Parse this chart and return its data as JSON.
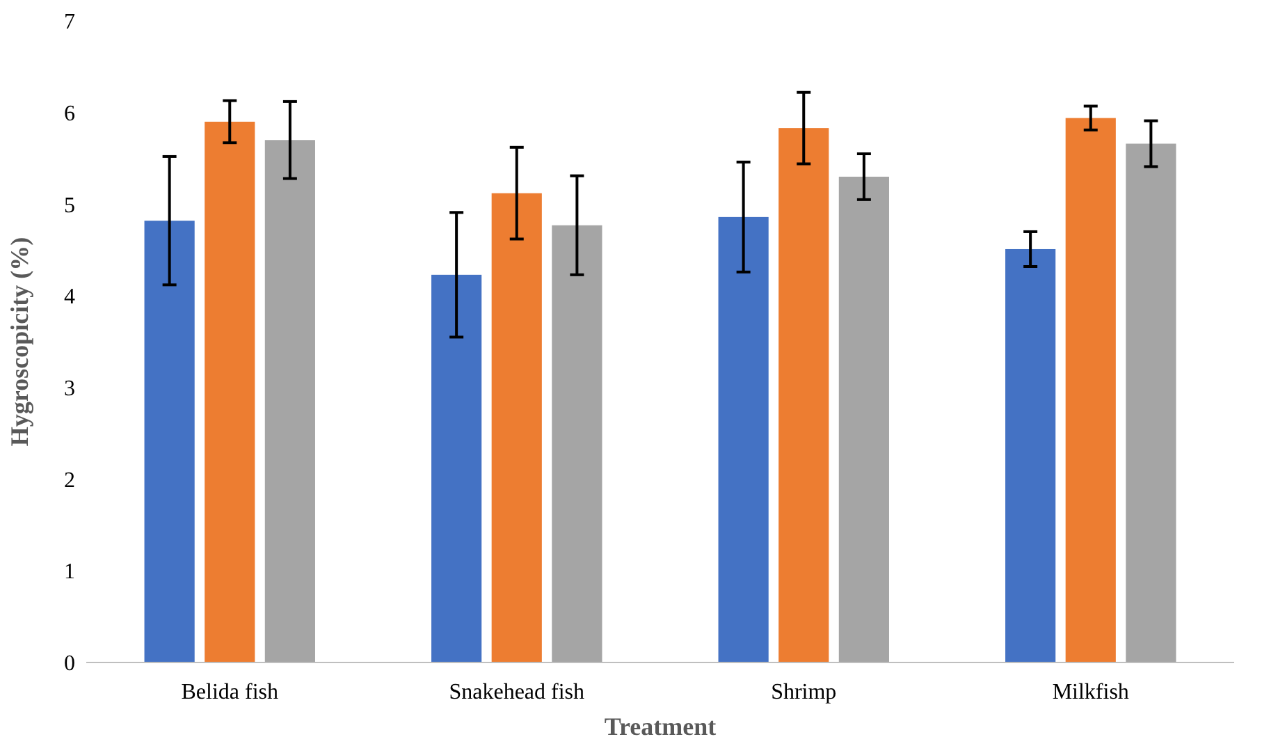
{
  "chart_data": {
    "type": "bar",
    "xlabel": "Treatment",
    "ylabel": "Hygroscopicity (%)",
    "categories": [
      "Belida fish",
      "Snakehead fish",
      "Shrimp",
      "Milkfish"
    ],
    "series": [
      {
        "color": "#4472c4",
        "values": [
          4.82,
          4.23,
          4.86,
          4.51
        ],
        "errors": [
          0.7,
          0.68,
          0.6,
          0.19
        ]
      },
      {
        "color": "#ed7d31",
        "values": [
          5.9,
          5.12,
          5.83,
          5.94
        ],
        "errors": [
          0.23,
          0.5,
          0.39,
          0.13
        ]
      },
      {
        "color": "#a5a5a5",
        "values": [
          5.7,
          4.77,
          5.3,
          5.66
        ],
        "errors": [
          0.42,
          0.54,
          0.25,
          0.25
        ]
      }
    ],
    "ylim": [
      0,
      7
    ],
    "yticks": [
      0,
      1,
      2,
      3,
      4,
      5,
      6,
      7
    ],
    "grid": false
  }
}
